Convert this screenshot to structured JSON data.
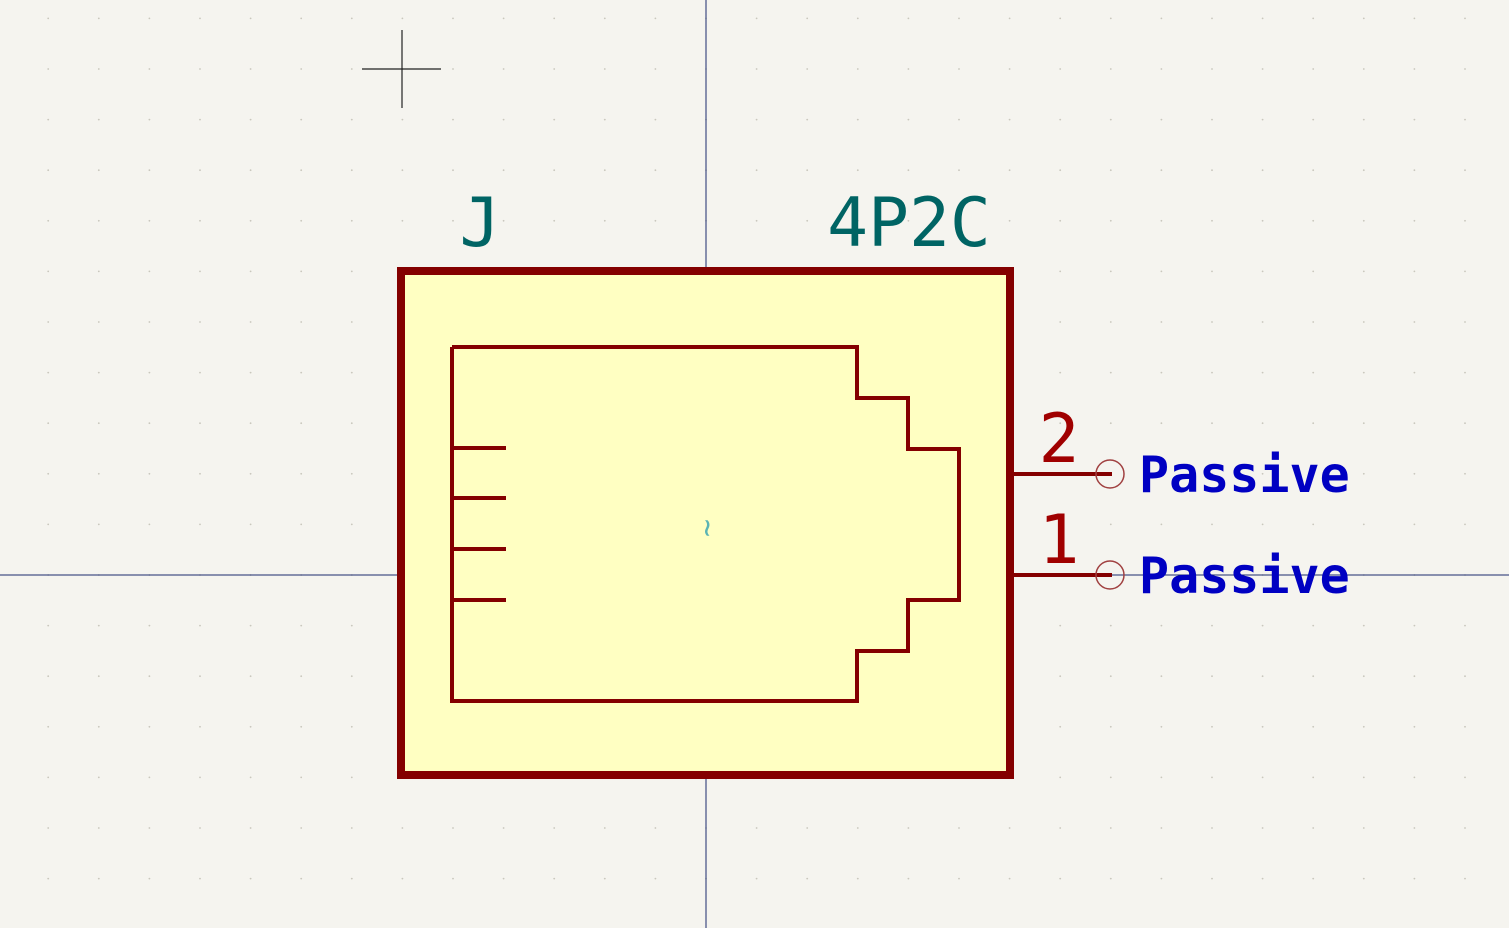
{
  "app": {
    "editor": "symbol-editor-canvas"
  },
  "symbol": {
    "reference": "J",
    "value": "4P2C",
    "anchor_glyph": "~",
    "pins": [
      {
        "number": "2",
        "type": "Passive"
      },
      {
        "number": "1",
        "type": "Passive"
      }
    ]
  },
  "colors": {
    "background": "#f5f4ef",
    "grid_dot": "#c9c7bd",
    "axis": "#1a2a6c",
    "body_fill": "#ffffc2",
    "body_stroke": "#840000",
    "field_text": "#006464",
    "pin_text": "#a00000",
    "pin_type_text": "#0000c2",
    "pin_end": "#a04040",
    "anchor": "#5ab4b4"
  },
  "icons": {
    "cursor": "crosshair-cursor-icon",
    "pin_end": "pin-end-circle-icon"
  }
}
